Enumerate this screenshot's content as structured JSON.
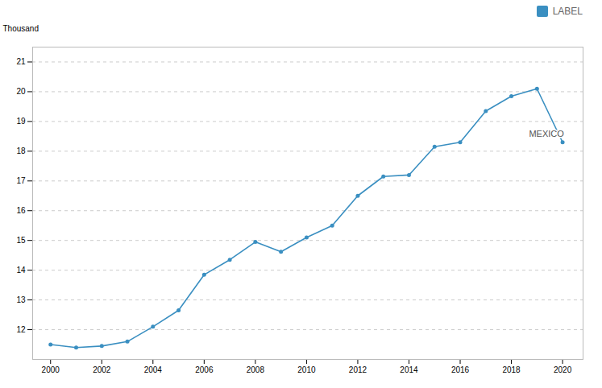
{
  "chart_data": {
    "type": "line",
    "x": [
      2000,
      2001,
      2002,
      2003,
      2004,
      2005,
      2006,
      2007,
      2008,
      2009,
      2010,
      2011,
      2012,
      2013,
      2014,
      2015,
      2016,
      2017,
      2018,
      2019,
      2020
    ],
    "series": [
      {
        "name": "LABEL",
        "color": "#3a8fc1",
        "marker": "circle",
        "line_style": "solid",
        "values": [
          11.5,
          11.4,
          11.45,
          11.6,
          12.1,
          12.65,
          13.85,
          14.35,
          14.95,
          14.62,
          15.1,
          15.5,
          16.5,
          17.15,
          17.2,
          18.15,
          18.3,
          19.35,
          19.85,
          20.1,
          18.3
        ]
      }
    ],
    "ylabel": "Thousand",
    "xlim": [
      1999.3,
      2020.8
    ],
    "xticks": [
      2000,
      2002,
      2004,
      2006,
      2008,
      2010,
      2012,
      2014,
      2016,
      2018,
      2020
    ],
    "ylim": [
      11.0,
      21.5
    ],
    "yticks": [
      12,
      13,
      14,
      15,
      16,
      17,
      18,
      19,
      20,
      21
    ],
    "grid": true,
    "legend": "top-right",
    "annotations": [
      {
        "text": "MEXICO",
        "x": 2020,
        "y": 18.3
      }
    ]
  }
}
